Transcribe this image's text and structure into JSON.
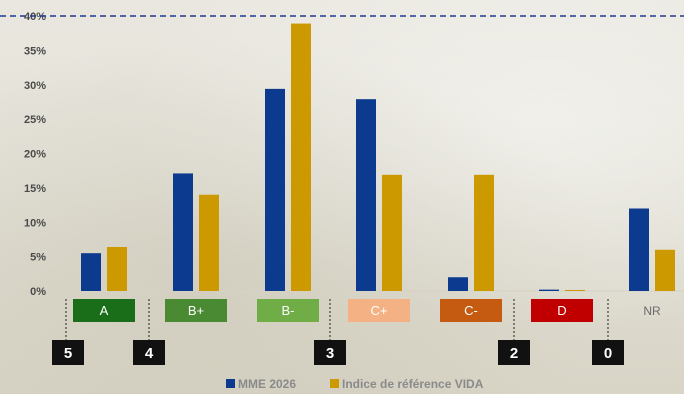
{
  "chart_data": {
    "type": "bar",
    "title": "",
    "xlabel": "",
    "ylabel": "",
    "ylim": [
      0,
      40
    ],
    "yticks": [
      "0%",
      "5%",
      "10%",
      "15%",
      "20%",
      "25%",
      "30%",
      "35%",
      "40%"
    ],
    "y_tick_values": [
      0,
      5,
      10,
      15,
      20,
      25,
      30,
      35,
      40
    ],
    "reference_line": 40,
    "categories": [
      "A",
      "B+",
      "B-",
      "C+",
      "C-",
      "D",
      "NR"
    ],
    "category_colors": [
      "#1a6e1a",
      "#4a8a32",
      "#70ad47",
      "#f4b183",
      "#c55a11",
      "#c00000",
      ""
    ],
    "series": [
      {
        "name": "MME 2026",
        "color": "#0b3a8f",
        "values": [
          5.5,
          17.1,
          29.4,
          27.9,
          2.0,
          0.2,
          12.0
        ]
      },
      {
        "name": "Indice de référence VIDA",
        "color": "#cc9900",
        "values": [
          6.4,
          14.0,
          38.9,
          16.9,
          16.9,
          0.1,
          6.0
        ]
      }
    ],
    "score_markers": [
      "5",
      "4",
      "3",
      "2",
      "0"
    ],
    "legend_position": "bottom",
    "grid": false
  }
}
